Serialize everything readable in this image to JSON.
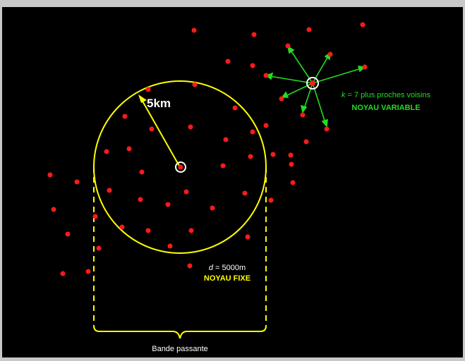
{
  "colors": {
    "background": "#000000",
    "frame": "#c8c8c8",
    "point": "#ff1a1a",
    "fixed_kernel": "#ffff00",
    "variable_kernel": "#22dd22",
    "text": "#ffffff"
  },
  "fixed_kernel": {
    "radius_label": "5km",
    "d_var": "d",
    "d_value": " = 5000m",
    "title": "NOYAU FIXE"
  },
  "variable_kernel": {
    "k_var": "k",
    "k_value": " = 7 plus proches voisins",
    "title": "NOYAU VARIABLE"
  },
  "bandwidth_label": "Bande passante"
}
